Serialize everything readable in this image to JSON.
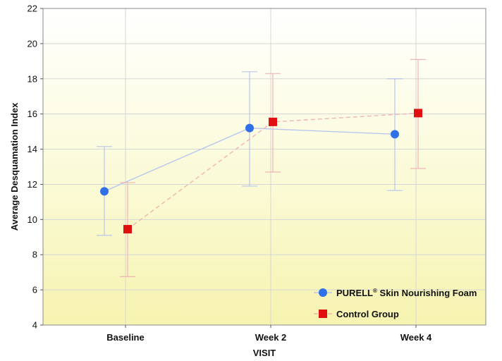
{
  "chart_data": {
    "type": "line",
    "ylabel": "Average Desquamation Index",
    "xlabel": "VISIT",
    "categories": [
      "Baseline",
      "Week 2",
      "Week 4"
    ],
    "ylim": [
      4,
      22
    ],
    "yticks": [
      4,
      6,
      8,
      10,
      12,
      14,
      16,
      18,
      20,
      22
    ],
    "grid": true,
    "legend_position": "bottom-right",
    "series": [
      {
        "name": "PURELL",
        "name_superscript": "®",
        "name_suffix": " Skin Nourishing Foam",
        "marker": "circle",
        "line_style": "solid",
        "color": "#2f6fe8",
        "line_color": "#b8c6ee",
        "values": [
          11.6,
          15.2,
          14.85
        ],
        "error_low": [
          9.1,
          11.9,
          11.65
        ],
        "error_high": [
          14.15,
          18.4,
          18.0
        ]
      },
      {
        "name": "Control Group",
        "marker": "square",
        "line_style": "dashed",
        "color": "#e01010",
        "line_color": "#f0b4b4",
        "values": [
          9.45,
          15.55,
          16.05
        ],
        "error_low": [
          6.75,
          12.7,
          12.9
        ],
        "error_high": [
          12.1,
          18.3,
          19.1
        ]
      }
    ],
    "background_gradient": [
      "#ffffff",
      "#fafad6",
      "#f7f3b0"
    ]
  }
}
